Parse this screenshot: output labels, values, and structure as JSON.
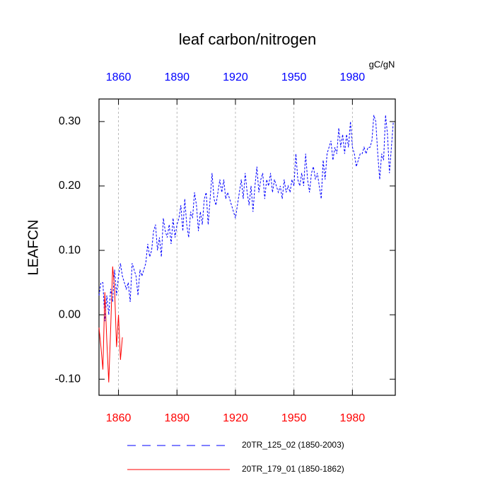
{
  "chart_data": {
    "type": "line",
    "title": "leaf carbon/nitrogen",
    "units": "gC/gN",
    "y_label": "LEAFCN",
    "xlim": [
      1850,
      2002
    ],
    "ylim": [
      -0.125,
      0.335
    ],
    "xticks": [
      1860,
      1890,
      1920,
      1950,
      1980
    ],
    "x2ticks": [
      1860,
      1890,
      1920,
      1950,
      1980
    ],
    "xaxis_color": "#ff0000",
    "x2axis_color": "#0000ff",
    "yticks": [
      {
        "value": -0.1,
        "label": "-0.10"
      },
      {
        "value": 0,
        "label": "0.00"
      },
      {
        "value": 0.1,
        "label": "0.10"
      },
      {
        "value": 0.2,
        "label": "0.20"
      },
      {
        "value": 0.3,
        "label": "0.30"
      }
    ],
    "grid": true,
    "legend": "bottom",
    "series": [
      {
        "name": "20TR_125_02 (1850-2003)",
        "color": "#0000ff",
        "dash": true,
        "x": [
          1850,
          1851,
          1852,
          1853,
          1854,
          1855,
          1856,
          1857,
          1858,
          1859,
          1860,
          1861,
          1862,
          1863,
          1864,
          1865,
          1866,
          1867,
          1868,
          1869,
          1870,
          1871,
          1872,
          1873,
          1874,
          1875,
          1876,
          1877,
          1878,
          1879,
          1880,
          1881,
          1882,
          1883,
          1884,
          1885,
          1886,
          1887,
          1888,
          1889,
          1890,
          1891,
          1892,
          1893,
          1894,
          1895,
          1896,
          1897,
          1898,
          1899,
          1900,
          1901,
          1902,
          1903,
          1904,
          1905,
          1906,
          1907,
          1908,
          1909,
          1910,
          1911,
          1912,
          1913,
          1914,
          1915,
          1916,
          1917,
          1918,
          1919,
          1920,
          1921,
          1922,
          1923,
          1924,
          1925,
          1926,
          1927,
          1928,
          1929,
          1930,
          1931,
          1932,
          1933,
          1934,
          1935,
          1936,
          1937,
          1938,
          1939,
          1940,
          1941,
          1942,
          1943,
          1944,
          1945,
          1946,
          1947,
          1948,
          1949,
          1950,
          1951,
          1952,
          1953,
          1954,
          1955,
          1956,
          1957,
          1958,
          1959,
          1960,
          1961,
          1962,
          1963,
          1964,
          1965,
          1966,
          1967,
          1968,
          1969,
          1970,
          1971,
          1972,
          1973,
          1974,
          1975,
          1976,
          1977,
          1978,
          1979,
          1980,
          1981,
          1982,
          1983,
          1984,
          1985,
          1986,
          1987,
          1988,
          1989,
          1990,
          1991,
          1992,
          1993,
          1994,
          1995,
          1996,
          1997,
          1998,
          1999,
          2000,
          2001
        ],
        "values": [
          0.03,
          0.05,
          0.05,
          -0.01,
          0.03,
          0.0,
          0.04,
          0.02,
          0.07,
          0.03,
          0.06,
          0.08,
          0.06,
          0.05,
          0.04,
          0.05,
          0.02,
          0.08,
          0.07,
          0.06,
          0.03,
          0.07,
          0.06,
          0.07,
          0.08,
          0.11,
          0.09,
          0.1,
          0.13,
          0.14,
          0.1,
          0.12,
          0.09,
          0.15,
          0.13,
          0.12,
          0.14,
          0.11,
          0.15,
          0.12,
          0.14,
          0.15,
          0.17,
          0.13,
          0.18,
          0.14,
          0.12,
          0.16,
          0.15,
          0.19,
          0.17,
          0.13,
          0.16,
          0.14,
          0.18,
          0.19,
          0.14,
          0.18,
          0.22,
          0.18,
          0.17,
          0.19,
          0.21,
          0.19,
          0.21,
          0.18,
          0.19,
          0.18,
          0.17,
          0.16,
          0.15,
          0.17,
          0.19,
          0.21,
          0.18,
          0.22,
          0.19,
          0.17,
          0.2,
          0.16,
          0.2,
          0.23,
          0.19,
          0.21,
          0.22,
          0.18,
          0.21,
          0.2,
          0.22,
          0.19,
          0.21,
          0.2,
          0.19,
          0.2,
          0.18,
          0.21,
          0.19,
          0.2,
          0.19,
          0.21,
          0.2,
          0.25,
          0.21,
          0.2,
          0.22,
          0.2,
          0.25,
          0.21,
          0.19,
          0.22,
          0.23,
          0.21,
          0.22,
          0.2,
          0.18,
          0.24,
          0.21,
          0.25,
          0.26,
          0.27,
          0.24,
          0.26,
          0.25,
          0.29,
          0.26,
          0.28,
          0.25,
          0.28,
          0.26,
          0.3,
          0.26,
          0.25,
          0.23,
          0.24,
          0.25,
          0.25,
          0.26,
          0.25,
          0.26,
          0.26,
          0.27,
          0.31,
          0.3,
          0.25,
          0.21,
          0.25,
          0.24,
          0.31,
          0.28,
          0.22,
          0.26,
          0.3
        ]
      },
      {
        "name": "20TR_179_01 (1850-1862)",
        "color": "#ff0000",
        "dash": false,
        "x": [
          1850,
          1851,
          1852,
          1853,
          1854,
          1855,
          1856,
          1857,
          1858,
          1859,
          1860,
          1861,
          1862
        ],
        "values": [
          -0.02,
          -0.05,
          -0.085,
          0.035,
          -0.04,
          -0.105,
          -0.02,
          0.075,
          0.04,
          -0.05,
          0.0,
          -0.07,
          -0.035
        ]
      }
    ]
  }
}
